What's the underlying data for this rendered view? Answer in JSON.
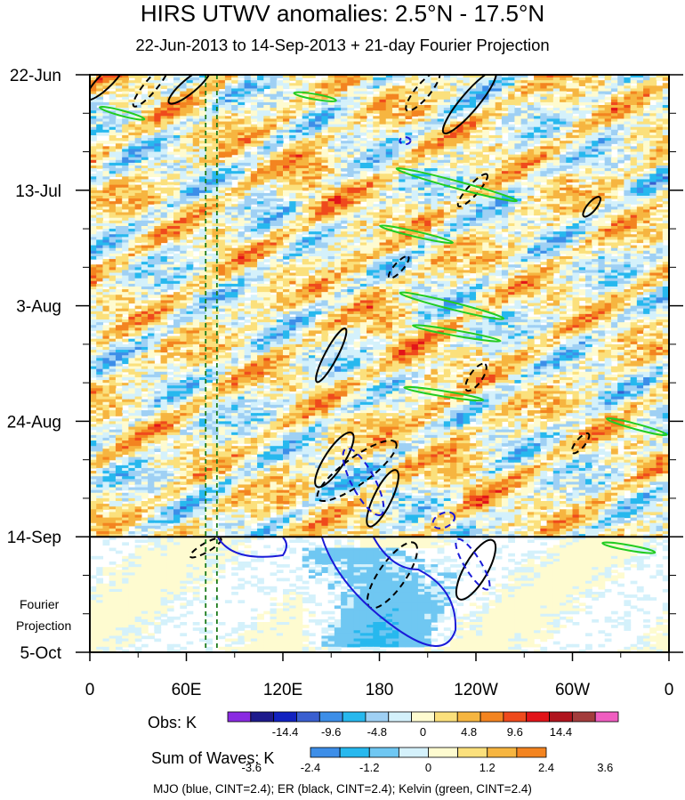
{
  "chart_data": {
    "type": "heatmap",
    "title": "HIRS UTWV anomalies: 2.5°N - 17.5°N",
    "subtitle": "22-Jun-2013 to 14-Sep-2013 + 21-day Fourier Projection",
    "y_axis": {
      "ticks": [
        "22-Jun",
        "13-Jul",
        "3-Aug",
        "24-Aug",
        "14-Sep",
        "5-Oct"
      ],
      "days_from_start": [
        0,
        21,
        42,
        63,
        84,
        105
      ],
      "projection_start_day": 84,
      "projection_label": [
        "Fourier",
        "Projection"
      ]
    },
    "x_axis": {
      "ticks": [
        "0",
        "60E",
        "120E",
        "180",
        "120W",
        "60W",
        "0"
      ],
      "longitudes": [
        0,
        60,
        120,
        180,
        240,
        300,
        360
      ]
    },
    "reference_lines_longitude": [
      72,
      79
    ],
    "obs_colorbar": {
      "label": "Obs: K",
      "tick_labels": [
        "-14.4",
        "-9.6",
        "-4.8",
        "0",
        "4.8",
        "9.6",
        "14.4"
      ],
      "colors": [
        "#8a2be2",
        "#1e1a8c",
        "#1222c0",
        "#3a5fd0",
        "#3d8ee8",
        "#27b8ee",
        "#9fd0f4",
        "#d4f1fb",
        "#fefbd0",
        "#fbe07c",
        "#f6b540",
        "#f38420",
        "#ef4a1c",
        "#e21419",
        "#b0141e",
        "#a33c3c",
        "#f05dc0"
      ]
    },
    "waves_colorbar": {
      "label": "Sum of Waves: K",
      "tick_labels": [
        "-3.6",
        "-2.4",
        "-1.2",
        "0",
        "1.2",
        "2.4",
        "3.6"
      ],
      "colors": [
        "#3d8ee8",
        "#27b8ee",
        "#6fc7f2",
        "#d4f1fb",
        "#fefbd0",
        "#fbe07c",
        "#f6b540",
        "#f38420"
      ]
    },
    "legend_note": "MJO (blue, CINT=2.4); ER (black, CINT=2.4); Kelvin (green, CINT=2.4)",
    "contour_colors": {
      "mjo": "#1a1ad8",
      "er": "#000000",
      "kelvin": "#22cc22"
    }
  }
}
